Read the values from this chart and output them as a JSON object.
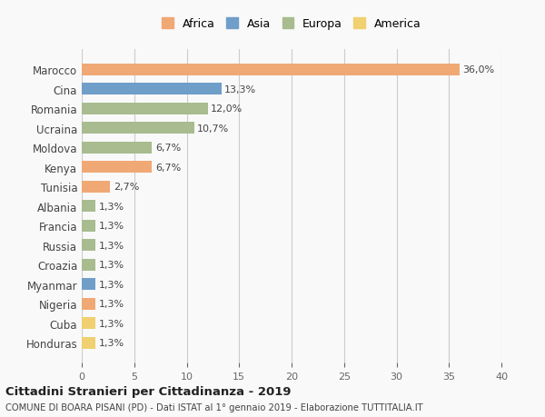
{
  "countries": [
    "Marocco",
    "Cina",
    "Romania",
    "Ucraina",
    "Moldova",
    "Kenya",
    "Tunisia",
    "Albania",
    "Francia",
    "Russia",
    "Croazia",
    "Myanmar",
    "Nigeria",
    "Cuba",
    "Honduras"
  ],
  "values": [
    36.0,
    13.3,
    12.0,
    10.7,
    6.7,
    6.7,
    2.7,
    1.3,
    1.3,
    1.3,
    1.3,
    1.3,
    1.3,
    1.3,
    1.3
  ],
  "labels": [
    "36,0%",
    "13,3%",
    "12,0%",
    "10,7%",
    "6,7%",
    "6,7%",
    "2,7%",
    "1,3%",
    "1,3%",
    "1,3%",
    "1,3%",
    "1,3%",
    "1,3%",
    "1,3%",
    "1,3%"
  ],
  "continents": [
    "Africa",
    "Asia",
    "Europa",
    "Europa",
    "Europa",
    "Africa",
    "Africa",
    "Europa",
    "Europa",
    "Europa",
    "Europa",
    "Asia",
    "Africa",
    "America",
    "America"
  ],
  "colors": {
    "Africa": "#F0A875",
    "Asia": "#6F9EC9",
    "Europa": "#A8BC8F",
    "America": "#F0D070"
  },
  "legend_order": [
    "Africa",
    "Asia",
    "Europa",
    "America"
  ],
  "title": "Cittadini Stranieri per Cittadinanza - 2019",
  "subtitle": "COMUNE DI BOARA PISANI (PD) - Dati ISTAT al 1° gennaio 2019 - Elaborazione TUTTITALIA.IT",
  "xlim": [
    0,
    40
  ],
  "xticks": [
    0,
    5,
    10,
    15,
    20,
    25,
    30,
    35,
    40
  ],
  "background_color": "#f9f9f9",
  "grid_color": "#cccccc",
  "bar_height": 0.6
}
